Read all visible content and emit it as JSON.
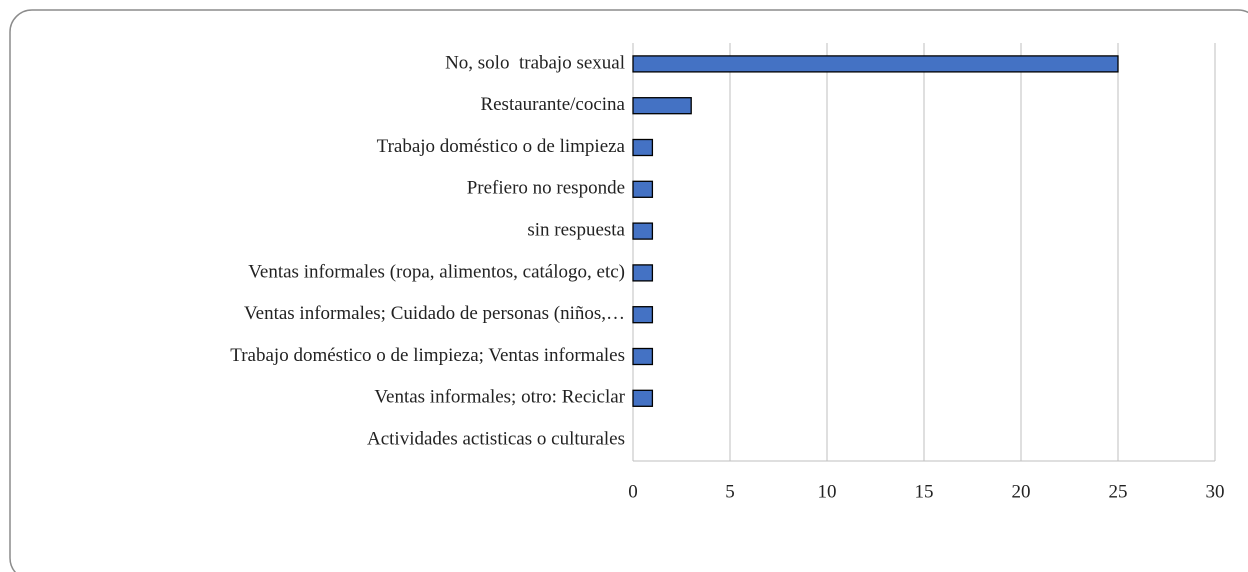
{
  "chart_data": {
    "type": "bar",
    "orientation": "horizontal",
    "categories": [
      "No, solo  trabajo sexual",
      "Restaurante/cocina",
      "Trabajo doméstico o de limpieza",
      "Prefiero no responde",
      "sin respuesta",
      "Ventas informales (ropa, alimentos, catálogo, etc)",
      "Ventas informales; Cuidado de personas (niños,…",
      "Trabajo doméstico o de limpieza; Ventas informales",
      "Ventas informales; otro: Reciclar",
      "Actividades actisticas o culturales"
    ],
    "values": [
      25,
      3,
      1,
      1,
      1,
      1,
      1,
      1,
      1,
      0
    ],
    "color": "#4472c4",
    "xlim": [
      0,
      30
    ],
    "xticks": [
      0,
      5,
      10,
      15,
      20,
      25,
      30
    ],
    "grid": true
  }
}
